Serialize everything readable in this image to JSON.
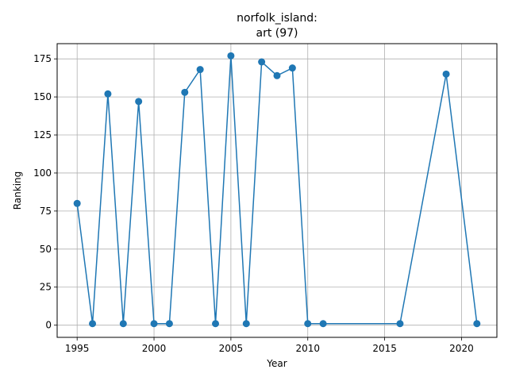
{
  "chart_data": {
    "type": "line",
    "title_line1": "norfolk_island:",
    "title_line2": "art (97)",
    "xlabel": "Year",
    "ylabel": "Ranking",
    "xlim": [
      1993.7,
      2022.3
    ],
    "ylim": [
      -8,
      185
    ],
    "xticks": [
      1995,
      2000,
      2005,
      2010,
      2015,
      2020
    ],
    "yticks": [
      0,
      25,
      50,
      75,
      100,
      125,
      150,
      175
    ],
    "grid": true,
    "series": [
      {
        "color": "#1f77b4",
        "marker": "circle",
        "x": [
          1995,
          1996,
          1997,
          1998,
          1999,
          2000,
          2001,
          2002,
          2003,
          2004,
          2005,
          2006,
          2007,
          2008,
          2009,
          2010,
          2011,
          2016,
          2019,
          2021
        ],
        "y": [
          80,
          1,
          152,
          1,
          147,
          1,
          1,
          153,
          168,
          1,
          177,
          1,
          173,
          164,
          169,
          1,
          1,
          1,
          165,
          1
        ]
      }
    ]
  }
}
